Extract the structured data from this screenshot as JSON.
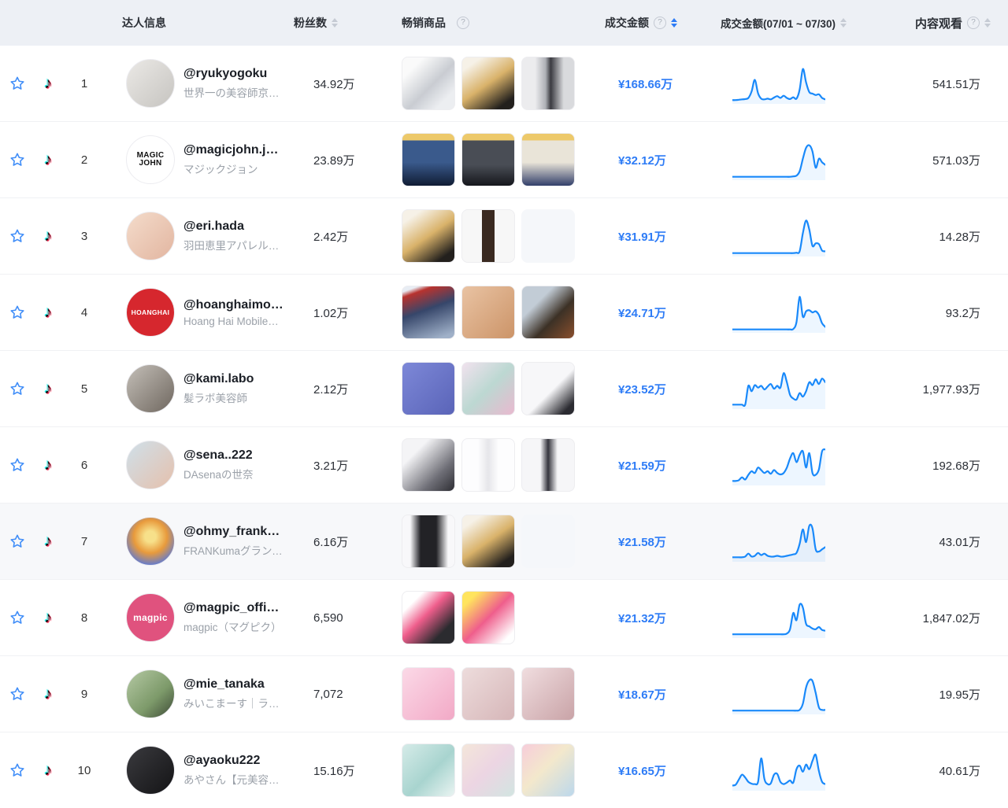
{
  "header": {
    "col_influencer": "达人信息",
    "col_followers": "粉丝数",
    "col_products": "畅销商品",
    "col_gmv": "成交金额",
    "col_gmv_trend": "成交金额(07/01 ~ 07/30)",
    "col_views": "内容观看",
    "help_glyph": "?"
  },
  "colors": {
    "accent": "#2e7cf6",
    "sparkline": "#1989fa",
    "header_bg": "#edf0f5",
    "highlight_row_bg": "#f7f8fa"
  },
  "trend_note": "sparkline values normalized 0-100 over 07/01-07/30",
  "rows": [
    {
      "rank": "1",
      "username": "@ryukyogoku",
      "subtitle": "世界一の美容師京極琉…",
      "followers": "34.92万",
      "gmv": "¥168.66万",
      "views": "541.51万",
      "avatar": {
        "kind": "photo",
        "name": "gray-haired-stylist",
        "bg": "linear-gradient(135deg,#ebe9e6,#c6c4c0)"
      },
      "products": [
        {
          "name": "hair-straightener",
          "bg": "linear-gradient(135deg,#fafafa 20%,#c9ccd2 55%,#eceef1 82%)"
        },
        {
          "name": "gold-serum-black-box",
          "bg": "linear-gradient(145deg,#f6f1e7 15%,#d9b26a 50%,#23201d 86%)"
        },
        {
          "name": "silver-tube",
          "bg": "linear-gradient(90deg,#ececee 25%,#aeb0b6 45%,#3a3a40 55%,#d9dadd 80%)"
        }
      ],
      "trend": [
        6,
        6,
        7,
        8,
        9,
        12,
        30,
        62,
        25,
        10,
        8,
        10,
        8,
        13,
        17,
        12,
        18,
        12,
        9,
        14,
        10,
        35,
        92,
        55,
        28,
        24,
        20,
        22,
        12,
        8
      ]
    },
    {
      "rank": "2",
      "username": "@magicjohn.ja…",
      "subtitle": "マジックジョン",
      "followers": "23.89万",
      "gmv": "¥32.12万",
      "views": "571.03万",
      "avatar": {
        "kind": "logo",
        "name": "magic-john-logo",
        "bg": "#ffffff",
        "label": "MAGIC JOHN",
        "color": "#111111",
        "cls": "logo-magic"
      },
      "products": [
        {
          "name": "screen-protector-dark",
          "bg": "linear-gradient(180deg,#edc96a 0 13%,#3a5a8c 13% 55%,#101c33 100%)"
        },
        {
          "name": "charging-cables",
          "bg": "linear-gradient(180deg,#edc96a 0 13%,#494d55 13% 60%,#15171c 100%)"
        },
        {
          "name": "screen-protector-kit",
          "bg": "linear-gradient(180deg,#edc96a 0 13%,#e9e4d8 13% 55%,#33406b 100%)"
        }
      ],
      "trend": [
        5,
        5,
        5,
        5,
        5,
        5,
        5,
        5,
        5,
        5,
        5,
        5,
        5,
        5,
        5,
        5,
        5,
        5,
        5,
        6,
        8,
        20,
        55,
        85,
        92,
        75,
        30,
        55,
        45,
        38
      ]
    },
    {
      "rank": "3",
      "username": "@eri.hada",
      "subtitle": "羽田恵里アパレル社長…",
      "followers": "2.42万",
      "gmv": "¥31.91万",
      "views": "14.28万",
      "avatar": {
        "kind": "photo",
        "name": "smiling-woman",
        "bg": "linear-gradient(135deg,#f4dccb,#e2b5a0)"
      },
      "products": [
        {
          "name": "gold-serum-black-box",
          "bg": "linear-gradient(145deg,#f6f1e7 15%,#d9b26a 50%,#23201d 86%)"
        },
        {
          "name": "brown-slim-bottle",
          "bg": "linear-gradient(90deg,#f7f7f7 38%,#3a2a21 38% 62%,#f7f7f7 62%)"
        },
        {
          "name": "placeholder",
          "empty": true
        }
      ],
      "trend": [
        5,
        5,
        5,
        5,
        5,
        5,
        5,
        5,
        5,
        5,
        5,
        5,
        5,
        5,
        5,
        5,
        5,
        5,
        5,
        5,
        6,
        10,
        60,
        95,
        70,
        25,
        32,
        30,
        12,
        10
      ]
    },
    {
      "rank": "4",
      "username": "@hoanghaimo…",
      "subtitle": "Hoang Hai Mobile…",
      "followers": "1.02万",
      "gmv": "¥24.71万",
      "views": "93.2万",
      "avatar": {
        "kind": "logo",
        "name": "hoanghai-logo",
        "bg": "#d6272e",
        "label": "HOANGHAI",
        "color": "#ffffff",
        "cls": "logo-sm"
      },
      "products": [
        {
          "name": "smartphone-promo",
          "bg": "linear-gradient(160deg,#e8edf4 8%,#b8332f 16%,#36466a 45%,#9fb0c8 92%)"
        },
        {
          "name": "rose-gold-watch",
          "bg": "linear-gradient(135deg,#e9c3a3,#cc9468)"
        },
        {
          "name": "luxury-watch",
          "bg": "linear-gradient(135deg,#c2ccd6 30%,#3c3126 62%,#8a4f2d 100%)"
        }
      ],
      "trend": [
        5,
        5,
        5,
        5,
        5,
        5,
        5,
        5,
        5,
        5,
        5,
        5,
        5,
        5,
        5,
        5,
        5,
        5,
        5,
        6,
        25,
        95,
        40,
        55,
        58,
        52,
        55,
        45,
        22,
        12
      ]
    },
    {
      "rank": "5",
      "username": "@kami.labo",
      "subtitle": "髪ラボ美容師",
      "followers": "2.12万",
      "gmv": "¥23.52万",
      "views": "1,977.93万",
      "avatar": {
        "kind": "photo",
        "name": "man-with-hairdryer",
        "bg": "linear-gradient(135deg,#c4bfb8,#6f675f)"
      },
      "products": [
        {
          "name": "handheld-fans",
          "bg": "linear-gradient(135deg,#7d88d8,#5a64b8)"
        },
        {
          "name": "pastel-tumblers",
          "bg": "linear-gradient(135deg,#f1e2ee,#bcd8d2 50%,#e9b9cf)"
        },
        {
          "name": "magnetic-phone-mount",
          "bg": "linear-gradient(135deg,#f7f7f9 55%,#2b2b31 88%)"
        }
      ],
      "trend": [
        8,
        8,
        8,
        8,
        8,
        60,
        45,
        62,
        55,
        60,
        50,
        58,
        65,
        52,
        60,
        55,
        95,
        70,
        35,
        25,
        22,
        40,
        30,
        45,
        70,
        62,
        78,
        65,
        80,
        70
      ]
    },
    {
      "rank": "6",
      "username": "@sena..222",
      "subtitle": "DAsenaの世奈",
      "followers": "3.21万",
      "gmv": "¥21.59万",
      "views": "192.68万",
      "avatar": {
        "kind": "photo",
        "name": "short-hair-woman",
        "bg": "linear-gradient(135deg,#cfe0ea,#e5c0ac)"
      },
      "products": [
        {
          "name": "open-ear-earbuds",
          "bg": "linear-gradient(135deg,#f4f4f6 25%,#6e6e76 70%,#2e2e34)"
        },
        {
          "name": "white-spray-bottle",
          "bg": "linear-gradient(90deg,#fdfdfe 30%,#e6e6ea 50%,#fdfdfe 70%)"
        },
        {
          "name": "hair-dryer-purple-ring",
          "bg": "linear-gradient(90deg,#f6f6f8 35%,#35353d 50%,#f6f6f8 68%)"
        }
      ],
      "trend": [
        8,
        8,
        10,
        18,
        12,
        25,
        35,
        30,
        45,
        38,
        30,
        35,
        28,
        38,
        30,
        26,
        30,
        45,
        70,
        85,
        60,
        80,
        90,
        45,
        85,
        30,
        25,
        40,
        90,
        95
      ]
    },
    {
      "rank": "7",
      "highlighted": true,
      "username": "@ohmy_frank0…",
      "subtitle": "FRANKumaグランプ…",
      "followers": "6.16万",
      "gmv": "¥21.58万",
      "views": "43.01万",
      "avatar": {
        "kind": "photo",
        "name": "gold-award-badge",
        "bg": "radial-gradient(circle at 50% 40%,#f7e08a 15%,#e89a3c 45%,#5a79d8 80%,#8a4fc9 100%)"
      },
      "products": [
        {
          "name": "black-hair-dryer-set",
          "bg": "linear-gradient(90deg,#f8f8fa 15%,#222226 35% 65%,#f8f8fa 88%)"
        },
        {
          "name": "gold-serum-black-box",
          "bg": "linear-gradient(145deg,#f6f1e7 15%,#d9b26a 50%,#23201d 86%)"
        },
        {
          "name": "placeholder",
          "empty": true
        }
      ],
      "trend": [
        8,
        8,
        8,
        8,
        10,
        18,
        10,
        12,
        20,
        14,
        18,
        12,
        10,
        10,
        12,
        10,
        10,
        12,
        14,
        16,
        20,
        45,
        85,
        50,
        95,
        88,
        30,
        24,
        30,
        36
      ]
    },
    {
      "rank": "8",
      "username": "@magpic_offic…",
      "subtitle": "magpic（マグピク）",
      "followers": "6,590",
      "gmv": "¥21.32万",
      "views": "1,847.02万",
      "avatar": {
        "kind": "logo",
        "name": "magpic-logo",
        "bg": "#e0527e",
        "label": "magpic",
        "color": "#ffffff",
        "cls": "logo-md"
      },
      "products": [
        {
          "name": "magpic-phone-grip",
          "bg": "linear-gradient(135deg,#ffffff 20%,#ef5e8c 45%,#2b2b2f 78%)"
        },
        {
          "name": "magpic-grip-campaign",
          "bg": "linear-gradient(135deg,#ffe45e 15%,#ef5e8c 50%,#ffffff 88%)"
        }
      ],
      "trend": [
        6,
        6,
        6,
        6,
        6,
        6,
        6,
        6,
        6,
        6,
        6,
        6,
        6,
        6,
        6,
        6,
        6,
        8,
        20,
        65,
        45,
        88,
        80,
        35,
        28,
        22,
        20,
        26,
        18,
        16
      ]
    },
    {
      "rank": "9",
      "username": "@mie_tanaka",
      "subtitle": "みいこまーす｜ライブ…",
      "followers": "7,072",
      "gmv": "¥18.67万",
      "views": "19.95万",
      "avatar": {
        "kind": "photo",
        "name": "woman-in-park",
        "bg": "linear-gradient(135deg,#b5c9a4,#7d9a6a 60%,#3d4a36)"
      },
      "products": [
        {
          "name": "pink-beauty-compact",
          "bg": "linear-gradient(135deg,#fbd9e7,#f2a9c6)"
        },
        {
          "name": "silk-pillowcase",
          "bg": "linear-gradient(135deg,#eddcdc,#d6b6b8)"
        },
        {
          "name": "silk-pillowcase-pair",
          "bg": "linear-gradient(135deg,#f0dddf,#c9a3a7)"
        }
      ],
      "trend": [
        6,
        6,
        6,
        6,
        6,
        6,
        6,
        6,
        6,
        6,
        6,
        6,
        6,
        6,
        6,
        6,
        6,
        6,
        6,
        6,
        6,
        8,
        25,
        70,
        90,
        88,
        55,
        15,
        8,
        8
      ]
    },
    {
      "rank": "10",
      "username": "@ayaoku222",
      "subtitle": "あやさん【元美容部員】",
      "followers": "15.16万",
      "gmv": "¥16.65万",
      "views": "40.61万",
      "avatar": {
        "kind": "photo",
        "name": "black-outfit-person",
        "bg": "linear-gradient(135deg,#3a3a3e,#141416)"
      },
      "products": [
        {
          "name": "serum-promo-card",
          "bg": "linear-gradient(135deg,#d5ebe8,#a8d4cf 55%,#eaf4f2)"
        },
        {
          "name": "powder-compact-card",
          "bg": "linear-gradient(135deg,#f4e6da,#ecd5e3 50%,#d2e5e1)"
        },
        {
          "name": "beauty-week-collab",
          "bg": "linear-gradient(135deg,#f7cdda,#f3e8cc 45%,#bcd8ec)"
        }
      ],
      "trend": [
        10,
        12,
        26,
        40,
        32,
        20,
        15,
        14,
        20,
        85,
        28,
        14,
        16,
        40,
        42,
        20,
        14,
        18,
        24,
        18,
        55,
        65,
        48,
        68,
        55,
        78,
        95,
        50,
        20,
        14
      ]
    }
  ]
}
